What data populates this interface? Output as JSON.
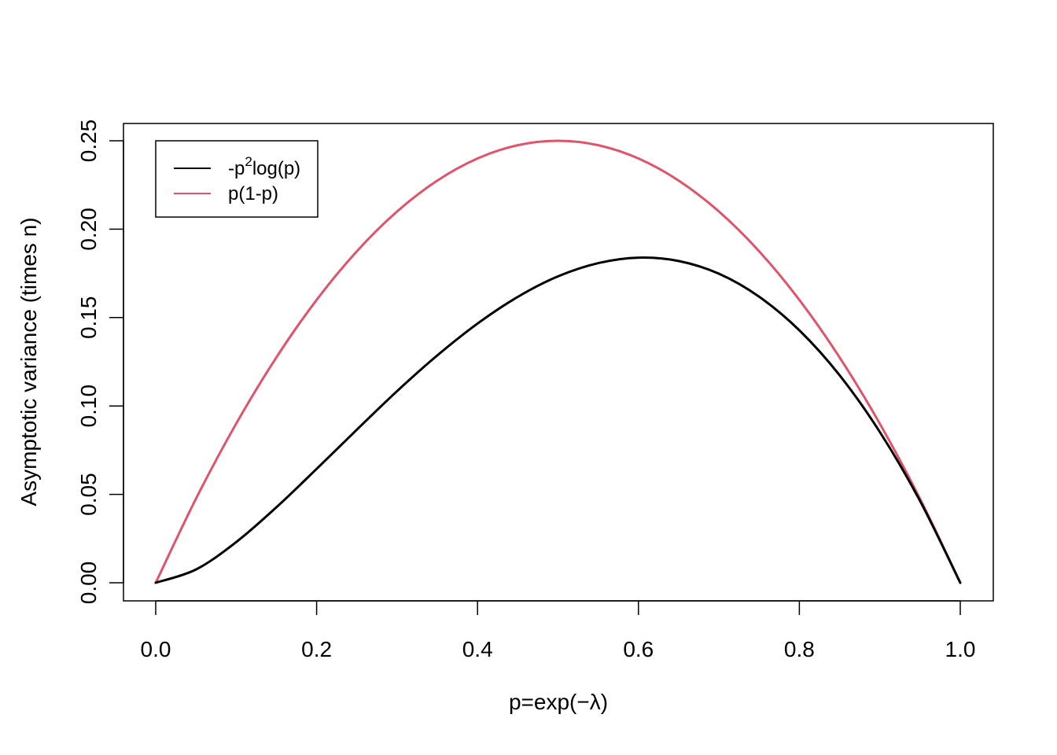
{
  "chart_data": {
    "type": "line",
    "xlabel": "p=exp(−λ)",
    "ylabel": "Asymptotic variance (times n)",
    "xlim": [
      0,
      1
    ],
    "ylim": [
      0,
      0.25
    ],
    "x_ticks": [
      "0.0",
      "0.2",
      "0.4",
      "0.6",
      "0.8",
      "1.0"
    ],
    "y_ticks": [
      "0.00",
      "0.05",
      "0.10",
      "0.15",
      "0.20",
      "0.25"
    ],
    "grid": false,
    "legend": {
      "position": "top-left",
      "entries": [
        {
          "label_main": "-p",
          "label_sup": "2",
          "label_rest": "log(p)",
          "color": "#000000"
        },
        {
          "label_main": "p(1-p)",
          "label_sup": "",
          "label_rest": "",
          "color": "#DF536B"
        }
      ]
    },
    "x": [
      0,
      0.05,
      0.1,
      0.15,
      0.2,
      0.25,
      0.3,
      0.35,
      0.4,
      0.45,
      0.5,
      0.55,
      0.6,
      0.65,
      0.7,
      0.75,
      0.8,
      0.85,
      0.9,
      0.95,
      1.0
    ],
    "series": [
      {
        "name": "-p^2 log(p)",
        "color": "#000000",
        "values": [
          0,
          0.0075,
          0.023,
          0.0427,
          0.0644,
          0.0866,
          0.1084,
          0.1286,
          0.1466,
          0.1617,
          0.1733,
          0.1808,
          0.1839,
          0.182,
          0.1748,
          0.1618,
          0.1428,
          0.1174,
          0.0853,
          0.0463,
          0
        ]
      },
      {
        "name": "p(1-p)",
        "color": "#DF536B",
        "values": [
          0,
          0.0475,
          0.09,
          0.1275,
          0.16,
          0.1875,
          0.21,
          0.2275,
          0.24,
          0.2475,
          0.25,
          0.2475,
          0.24,
          0.2275,
          0.21,
          0.1875,
          0.16,
          0.1275,
          0.09,
          0.0475,
          0
        ]
      }
    ]
  }
}
